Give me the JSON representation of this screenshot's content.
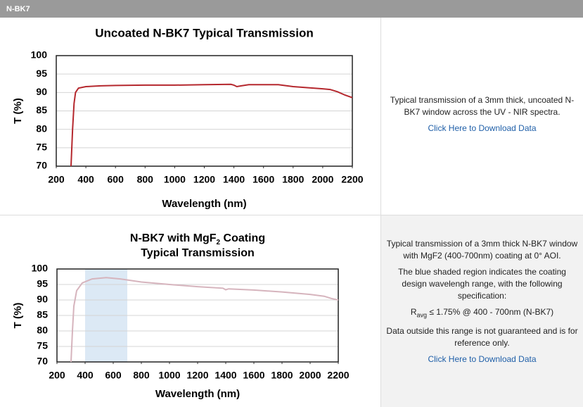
{
  "header": "N-BK7",
  "descriptions": [
    {
      "paragraphs": [
        "Typical transmission of a 3mm thick, uncoated N-BK7 window across the UV - NIR spectra."
      ],
      "link": "Click Here to Download Data"
    },
    {
      "paragraphs": [
        "Typical transmission of a 3mm thick N-BK7 window with MgF2 (400-700nm) coating at 0° AOI.",
        "The blue shaded region indicates the coating design wavelengh range, with the following specification:"
      ],
      "spec": {
        "symbol": "R",
        "subscript": "avg",
        "text": " ≤ 1.75% @ 400 - 700nm (N-BK7)"
      },
      "note": "Data outside this range is not guaranteed and is for reference only.",
      "link": "Click Here to Download Data"
    }
  ],
  "chart_data": [
    {
      "type": "line",
      "title": "Uncoated N-BK7 Typical Transmission",
      "x_label": "Wavelength (nm)",
      "y_label": "T (%)",
      "color": "#b5282e",
      "x": [
        300,
        310,
        320,
        330,
        350,
        400,
        500,
        600,
        800,
        1000,
        1200,
        1380,
        1400,
        1420,
        1450,
        1500,
        1700,
        1800,
        2000,
        2050,
        2100,
        2150,
        2200
      ],
      "values": [
        70,
        80,
        87,
        90,
        91.2,
        91.6,
        91.8,
        91.9,
        92,
        92,
        92.1,
        92.2,
        92,
        91.6,
        91.8,
        92.1,
        92.1,
        91.6,
        91,
        90.8,
        90.2,
        89.3,
        88.6
      ],
      "xlim": [
        200,
        2200
      ],
      "xticks": [
        200,
        400,
        600,
        800,
        1000,
        1200,
        1400,
        1600,
        1800,
        2000,
        2200
      ],
      "ylim": [
        70,
        100
      ],
      "yticks": [
        70,
        75,
        80,
        85,
        90,
        95,
        100
      ],
      "grid": true
    },
    {
      "type": "line",
      "title": {
        "before": "N-BK7 with MgF",
        "subscript": "2",
        "after": " Coating",
        "line2": "Typical Transmission"
      },
      "x_label": "Wavelength (nm)",
      "y_label": "T (%)",
      "color": "#d6b4bd",
      "shaded_range": [
        400,
        700
      ],
      "shade_color": "#dce9f5",
      "x": [
        300,
        310,
        320,
        340,
        380,
        450,
        550,
        650,
        800,
        1000,
        1200,
        1380,
        1400,
        1420,
        1600,
        1800,
        2000,
        2100,
        2150,
        2200
      ],
      "values": [
        70,
        80,
        88,
        93,
        95.5,
        96.8,
        97.2,
        96.8,
        95.8,
        95,
        94.3,
        93.8,
        93.3,
        93.6,
        93.2,
        92.6,
        91.8,
        91.2,
        90.5,
        90
      ],
      "xlim": [
        200,
        2200
      ],
      "xticks": [
        200,
        400,
        600,
        800,
        1000,
        1200,
        1400,
        1600,
        1800,
        2000,
        2200
      ],
      "ylim": [
        70,
        100
      ],
      "yticks": [
        70,
        75,
        80,
        85,
        90,
        95,
        100
      ],
      "grid": true
    }
  ]
}
